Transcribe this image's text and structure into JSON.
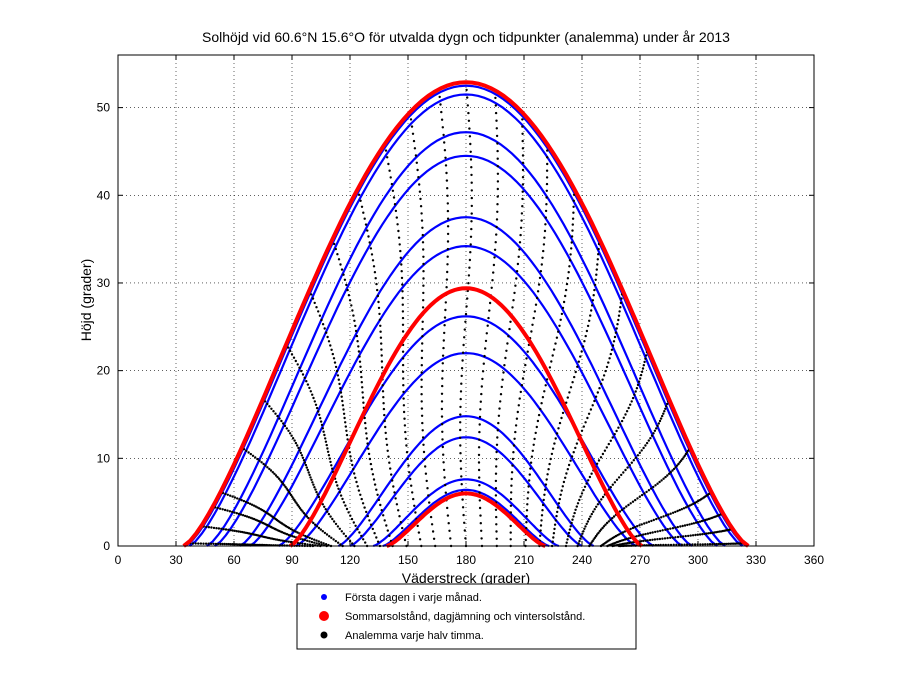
{
  "chart_data": {
    "type": "line",
    "title": "Solhöjd vid 60.6°N 15.6°O för utvalda dygn och tidpunkter (analemma) under år 2013",
    "xlabel": "Väderstreck (grader)",
    "ylabel": "Höjd (grader)",
    "xlim": [
      0,
      360
    ],
    "ylim": [
      0,
      56
    ],
    "xticks": [
      0,
      30,
      60,
      90,
      120,
      150,
      180,
      210,
      240,
      270,
      300,
      330,
      360
    ],
    "yticks": [
      0,
      10,
      20,
      30,
      40,
      50
    ],
    "grid": "dotted",
    "legend_position": "below-center",
    "legend": [
      {
        "label": "Första dagen i varje månad.",
        "color": "#0000ff",
        "marker": "small-dot"
      },
      {
        "label": "Sommarsolstånd, dagjämning och vintersolstånd.",
        "color": "#ff0000",
        "marker": "large-dot"
      },
      {
        "label": "Analemma varje halv timma.",
        "color": "#000000",
        "marker": "dot"
      }
    ],
    "series": [
      {
        "name": "Första dagen i varje månad.",
        "color": "#0000ff",
        "daily_curves": [
          {
            "x0": 35,
            "x1": 325,
            "peak": 52.5
          },
          {
            "x0": 37,
            "x1": 323,
            "peak": 51.5
          },
          {
            "x0": 46,
            "x1": 314,
            "peak": 47.2
          },
          {
            "x0": 50,
            "x1": 310,
            "peak": 44.5
          },
          {
            "x0": 63,
            "x1": 297,
            "peak": 37.5
          },
          {
            "x0": 68,
            "x1": 292,
            "peak": 34.2
          },
          {
            "x0": 83,
            "x1": 277,
            "peak": 26.2
          },
          {
            "x0": 92,
            "x1": 268,
            "peak": 22.0
          },
          {
            "x0": 114,
            "x1": 246,
            "peak": 14.8
          },
          {
            "x0": 120,
            "x1": 240,
            "peak": 12.4
          },
          {
            "x0": 132,
            "x1": 228,
            "peak": 7.6
          },
          {
            "x0": 137,
            "x1": 223,
            "peak": 6.4
          }
        ]
      },
      {
        "name": "Sommarsolstånd, dagjämning och vintersolstånd.",
        "color": "#ff0000",
        "daily_curves": [
          {
            "x0": 34,
            "x1": 326,
            "peak": 52.9
          },
          {
            "x0": 89,
            "x1": 271,
            "peak": 29.4
          },
          {
            "x0": 139,
            "x1": 221,
            "peak": 6.0
          }
        ]
      },
      {
        "name": "Analemma varje halv timma.",
        "color": "#000000",
        "noon_azimuths": [
          36,
          43,
          49,
          53,
          64,
          75,
          87,
          99,
          111,
          124,
          138,
          151,
          166,
          180,
          195,
          209,
          222,
          236,
          249,
          261,
          274,
          285,
          296,
          307,
          313,
          318,
          324
        ]
      }
    ]
  }
}
